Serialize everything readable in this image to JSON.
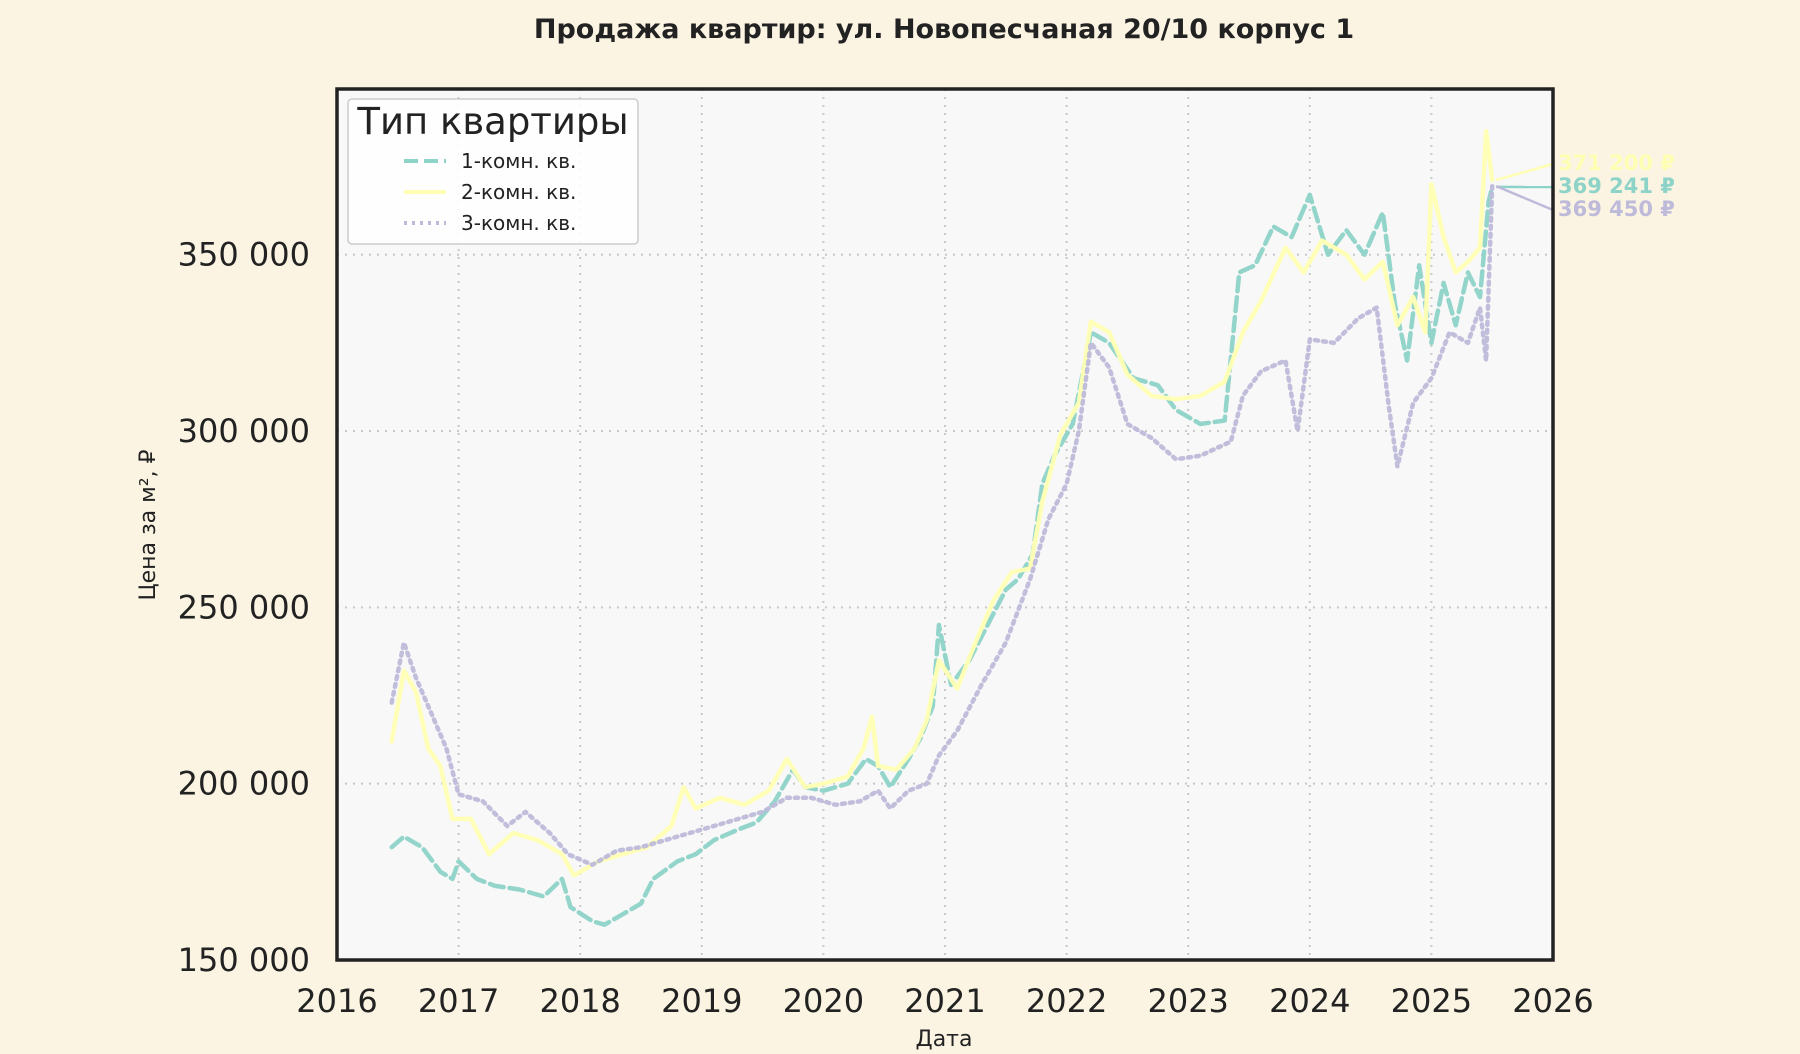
{
  "chart_data": {
    "type": "line",
    "title": "Продажа квартир: ул. Новопесчаная 20/10 корпус 1",
    "xlabel": "Дата",
    "ylabel": "Цена за м², ₽",
    "xlim": [
      2016,
      2026
    ],
    "ylim": [
      150000,
      397000
    ],
    "x_ticks": [
      2016,
      2017,
      2018,
      2019,
      2020,
      2021,
      2022,
      2023,
      2024,
      2025,
      2026
    ],
    "x_tick_labels": [
      "2016",
      "2017",
      "2018",
      "2019",
      "2020",
      "2021",
      "2022",
      "2023",
      "2024",
      "2025",
      "2026"
    ],
    "y_ticks": [
      150000,
      200000,
      250000,
      300000,
      350000
    ],
    "y_tick_labels": [
      "150 000",
      "200 000",
      "250 000",
      "300 000",
      "350 000"
    ],
    "grid": true,
    "legend": {
      "title": "Тип квартиры",
      "placement": "upper-left"
    },
    "series": [
      {
        "name": "1-комн. кв.",
        "color": "#8dd3c7",
        "style": "dashed",
        "end_label": "369 241 ₽",
        "points": [
          [
            2016.45,
            182000
          ],
          [
            2016.55,
            185000
          ],
          [
            2016.7,
            182000
          ],
          [
            2016.85,
            175000
          ],
          [
            2016.95,
            173000
          ],
          [
            2017.0,
            178000
          ],
          [
            2017.15,
            173000
          ],
          [
            2017.3,
            171000
          ],
          [
            2017.5,
            170000
          ],
          [
            2017.7,
            168000
          ],
          [
            2017.85,
            173000
          ],
          [
            2017.92,
            165000
          ],
          [
            2018.1,
            161000
          ],
          [
            2018.2,
            160000
          ],
          [
            2018.35,
            163000
          ],
          [
            2018.5,
            166000
          ],
          [
            2018.6,
            173000
          ],
          [
            2018.8,
            178000
          ],
          [
            2018.95,
            180000
          ],
          [
            2019.1,
            184000
          ],
          [
            2019.3,
            187000
          ],
          [
            2019.45,
            189000
          ],
          [
            2019.6,
            195000
          ],
          [
            2019.75,
            204000
          ],
          [
            2019.85,
            199000
          ],
          [
            2020.0,
            198000
          ],
          [
            2020.2,
            200000
          ],
          [
            2020.35,
            207000
          ],
          [
            2020.45,
            205000
          ],
          [
            2020.55,
            199000
          ],
          [
            2020.7,
            207000
          ],
          [
            2020.8,
            213000
          ],
          [
            2020.9,
            222000
          ],
          [
            2020.95,
            245000
          ],
          [
            2021.05,
            228000
          ],
          [
            2021.2,
            235000
          ],
          [
            2021.35,
            245000
          ],
          [
            2021.5,
            255000
          ],
          [
            2021.6,
            258000
          ],
          [
            2021.72,
            265000
          ],
          [
            2021.8,
            285000
          ],
          [
            2021.9,
            293000
          ],
          [
            2022.05,
            302000
          ],
          [
            2022.2,
            328000
          ],
          [
            2022.35,
            325000
          ],
          [
            2022.55,
            315000
          ],
          [
            2022.75,
            313000
          ],
          [
            2022.9,
            306000
          ],
          [
            2023.1,
            302000
          ],
          [
            2023.3,
            303000
          ],
          [
            2023.42,
            345000
          ],
          [
            2023.55,
            347000
          ],
          [
            2023.7,
            358000
          ],
          [
            2023.85,
            355000
          ],
          [
            2024.0,
            367000
          ],
          [
            2024.15,
            350000
          ],
          [
            2024.3,
            357000
          ],
          [
            2024.45,
            350000
          ],
          [
            2024.6,
            362000
          ],
          [
            2024.7,
            336000
          ],
          [
            2024.8,
            320000
          ],
          [
            2024.9,
            347000
          ],
          [
            2025.0,
            325000
          ],
          [
            2025.1,
            342000
          ],
          [
            2025.2,
            330000
          ],
          [
            2025.3,
            345000
          ],
          [
            2025.4,
            338000
          ],
          [
            2025.47,
            365000
          ],
          [
            2025.5,
            369241
          ]
        ]
      },
      {
        "name": "2-комн. кв.",
        "color": "#ffffb3",
        "style": "solid",
        "end_label": "371 200 ₽",
        "points": [
          [
            2016.45,
            212000
          ],
          [
            2016.55,
            232000
          ],
          [
            2016.65,
            226000
          ],
          [
            2016.75,
            210000
          ],
          [
            2016.85,
            205000
          ],
          [
            2016.95,
            190000
          ],
          [
            2017.1,
            190000
          ],
          [
            2017.25,
            180000
          ],
          [
            2017.45,
            186000
          ],
          [
            2017.65,
            184000
          ],
          [
            2017.85,
            180000
          ],
          [
            2017.95,
            174000
          ],
          [
            2018.15,
            178000
          ],
          [
            2018.35,
            180000
          ],
          [
            2018.55,
            182000
          ],
          [
            2018.75,
            188000
          ],
          [
            2018.85,
            199000
          ],
          [
            2018.95,
            193000
          ],
          [
            2019.15,
            196000
          ],
          [
            2019.35,
            194000
          ],
          [
            2019.55,
            198000
          ],
          [
            2019.7,
            207000
          ],
          [
            2019.85,
            199000
          ],
          [
            2020.0,
            200000
          ],
          [
            2020.2,
            202000
          ],
          [
            2020.33,
            210000
          ],
          [
            2020.4,
            219000
          ],
          [
            2020.45,
            205000
          ],
          [
            2020.6,
            204000
          ],
          [
            2020.75,
            210000
          ],
          [
            2020.85,
            218000
          ],
          [
            2020.95,
            235000
          ],
          [
            2021.1,
            227000
          ],
          [
            2021.25,
            240000
          ],
          [
            2021.4,
            252000
          ],
          [
            2021.55,
            260000
          ],
          [
            2021.7,
            261000
          ],
          [
            2021.8,
            280000
          ],
          [
            2021.95,
            299000
          ],
          [
            2022.1,
            308000
          ],
          [
            2022.2,
            331000
          ],
          [
            2022.35,
            328000
          ],
          [
            2022.5,
            316000
          ],
          [
            2022.7,
            310000
          ],
          [
            2022.9,
            309000
          ],
          [
            2023.1,
            310000
          ],
          [
            2023.3,
            314000
          ],
          [
            2023.45,
            328000
          ],
          [
            2023.6,
            337000
          ],
          [
            2023.8,
            352000
          ],
          [
            2023.95,
            345000
          ],
          [
            2024.1,
            354000
          ],
          [
            2024.3,
            350000
          ],
          [
            2024.45,
            343000
          ],
          [
            2024.6,
            348000
          ],
          [
            2024.72,
            330000
          ],
          [
            2024.85,
            338000
          ],
          [
            2024.95,
            328000
          ],
          [
            2025.0,
            370000
          ],
          [
            2025.1,
            355000
          ],
          [
            2025.2,
            345000
          ],
          [
            2025.3,
            348000
          ],
          [
            2025.4,
            352000
          ],
          [
            2025.45,
            385000
          ],
          [
            2025.5,
            371200
          ]
        ]
      },
      {
        "name": "3-комн. кв.",
        "color": "#bebada",
        "style": "dotted",
        "end_label": "369 450 ₽",
        "points": [
          [
            2016.45,
            223000
          ],
          [
            2016.55,
            240000
          ],
          [
            2016.65,
            230000
          ],
          [
            2016.8,
            218000
          ],
          [
            2016.9,
            210000
          ],
          [
            2017.0,
            197000
          ],
          [
            2017.2,
            195000
          ],
          [
            2017.4,
            188000
          ],
          [
            2017.55,
            192000
          ],
          [
            2017.75,
            186000
          ],
          [
            2017.9,
            180000
          ],
          [
            2018.1,
            177000
          ],
          [
            2018.3,
            181000
          ],
          [
            2018.5,
            182000
          ],
          [
            2018.7,
            184000
          ],
          [
            2018.9,
            186000
          ],
          [
            2019.1,
            188000
          ],
          [
            2019.3,
            190000
          ],
          [
            2019.5,
            192000
          ],
          [
            2019.7,
            196000
          ],
          [
            2019.9,
            196000
          ],
          [
            2020.1,
            194000
          ],
          [
            2020.3,
            195000
          ],
          [
            2020.45,
            198000
          ],
          [
            2020.55,
            193000
          ],
          [
            2020.7,
            198000
          ],
          [
            2020.85,
            200000
          ],
          [
            2020.95,
            208000
          ],
          [
            2021.1,
            215000
          ],
          [
            2021.3,
            228000
          ],
          [
            2021.5,
            240000
          ],
          [
            2021.7,
            258000
          ],
          [
            2021.85,
            275000
          ],
          [
            2022.0,
            285000
          ],
          [
            2022.1,
            300000
          ],
          [
            2022.2,
            325000
          ],
          [
            2022.35,
            318000
          ],
          [
            2022.5,
            302000
          ],
          [
            2022.7,
            298000
          ],
          [
            2022.9,
            292000
          ],
          [
            2023.1,
            293000
          ],
          [
            2023.35,
            297000
          ],
          [
            2023.45,
            310000
          ],
          [
            2023.6,
            317000
          ],
          [
            2023.8,
            320000
          ],
          [
            2023.9,
            300000
          ],
          [
            2024.0,
            326000
          ],
          [
            2024.2,
            325000
          ],
          [
            2024.4,
            332000
          ],
          [
            2024.55,
            335000
          ],
          [
            2024.65,
            307000
          ],
          [
            2024.72,
            290000
          ],
          [
            2024.85,
            308000
          ],
          [
            2025.0,
            315000
          ],
          [
            2025.15,
            328000
          ],
          [
            2025.3,
            325000
          ],
          [
            2025.4,
            335000
          ],
          [
            2025.45,
            320000
          ],
          [
            2025.5,
            369450
          ]
        ]
      }
    ]
  }
}
